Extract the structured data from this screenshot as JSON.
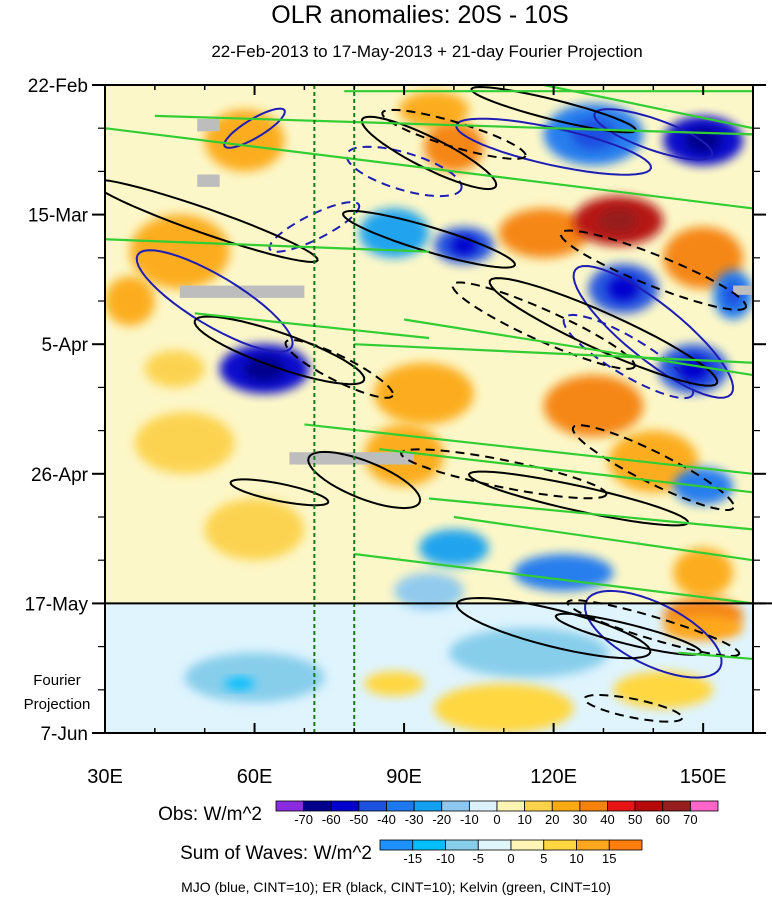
{
  "chart_data": {
    "type": "heatmap",
    "title": "OLR anomalies: 20S - 10S",
    "subtitle": "22-Feb-2013 to 17-May-2013 + 21-day Fourier Projection",
    "x_axis": {
      "label": "",
      "range": [
        30,
        160
      ],
      "ticks": [
        30,
        60,
        90,
        120,
        150
      ],
      "tick_labels": [
        "30E",
        "60E",
        "90E",
        "120E",
        "150E"
      ]
    },
    "y_axis": {
      "label": "",
      "range_days": [
        0,
        105
      ],
      "ticks_days": [
        0,
        21,
        42,
        63,
        84,
        105
      ],
      "tick_labels": [
        "22-Feb",
        "15-Mar",
        "5-Apr",
        "26-Apr",
        "17-May",
        "7-Jun"
      ],
      "inverted": true
    },
    "projection_start_day": 84,
    "projection_label": [
      "Fourier",
      "Projection"
    ],
    "dashed_reference_lines_lon": [
      72,
      80
    ],
    "obs_colorbar": {
      "label": "Obs: W/m^2",
      "levels": [
        -70,
        -60,
        -50,
        -40,
        -30,
        -20,
        -10,
        0,
        10,
        20,
        30,
        40,
        50,
        60,
        70
      ],
      "colors": [
        "#8a2be2",
        "#00008b",
        "#0000cd",
        "#1e50e0",
        "#1e78f0",
        "#14a0f0",
        "#8cc8f0",
        "#dcf2fc",
        "#fcf5b4",
        "#fcd24b",
        "#fcaa14",
        "#f5820a",
        "#e61414",
        "#b40a0a",
        "#961e1e",
        "#ff64c8"
      ]
    },
    "waves_colorbar": {
      "label": "Sum of Waves: W/m^2",
      "levels": [
        -15,
        -10,
        -5,
        0,
        5,
        10,
        15
      ],
      "colors": [
        "#1e90ff",
        "#00bfff",
        "#87ceeb",
        "#e0f6ff",
        "#fff5b4",
        "#ffd740",
        "#ffa81e",
        "#ff7f0e"
      ]
    },
    "footnote": "MJO (blue, CINT=10); ER (black, CINT=10); Kelvin (green, CINT=10)",
    "contour_series": [
      {
        "name": "MJO",
        "color": "#1e1eb4",
        "interval": 10
      },
      {
        "name": "ER",
        "color": "#000000",
        "interval": 10
      },
      {
        "name": "Kelvin",
        "color": "#32cd32",
        "interval": 10
      }
    ],
    "obs_features": [
      {
        "lon": 58,
        "day": 9,
        "rx": 8,
        "ry": 5,
        "value": 25
      },
      {
        "lon": 96,
        "day": 4,
        "rx": 7,
        "ry": 3,
        "value": 20
      },
      {
        "lon": 100,
        "day": 10,
        "rx": 6,
        "ry": 4,
        "value": 30
      },
      {
        "lon": 128,
        "day": 8,
        "rx": 10,
        "ry": 5,
        "value": -40
      },
      {
        "lon": 150,
        "day": 9,
        "rx": 8,
        "ry": 4,
        "value": -60
      },
      {
        "lon": 45,
        "day": 27,
        "rx": 10,
        "ry": 6,
        "value": 25
      },
      {
        "lon": 88,
        "day": 24,
        "rx": 7,
        "ry": 4,
        "value": -30
      },
      {
        "lon": 102,
        "day": 26,
        "rx": 6,
        "ry": 3,
        "value": -45
      },
      {
        "lon": 118,
        "day": 24,
        "rx": 9,
        "ry": 4,
        "value": 35
      },
      {
        "lon": 133,
        "day": 22,
        "rx": 9,
        "ry": 4,
        "value": 50
      },
      {
        "lon": 150,
        "day": 28,
        "rx": 8,
        "ry": 5,
        "value": 30
      },
      {
        "lon": 134,
        "day": 33,
        "rx": 7,
        "ry": 4,
        "value": -50
      },
      {
        "lon": 156,
        "day": 34,
        "rx": 4,
        "ry": 4,
        "value": -40
      },
      {
        "lon": 35,
        "day": 35,
        "rx": 5,
        "ry": 4,
        "value": 20
      },
      {
        "lon": 62,
        "day": 46,
        "rx": 9,
        "ry": 4,
        "value": -55
      },
      {
        "lon": 44,
        "day": 46,
        "rx": 6,
        "ry": 3,
        "value": 15
      },
      {
        "lon": 94,
        "day": 50,
        "rx": 10,
        "ry": 5,
        "value": 25
      },
      {
        "lon": 128,
        "day": 52,
        "rx": 10,
        "ry": 5,
        "value": 30
      },
      {
        "lon": 148,
        "day": 46,
        "rx": 7,
        "ry": 4,
        "value": -45
      },
      {
        "lon": 46,
        "day": 58,
        "rx": 10,
        "ry": 5,
        "value": 15
      },
      {
        "lon": 90,
        "day": 60,
        "rx": 8,
        "ry": 5,
        "value": 20
      },
      {
        "lon": 140,
        "day": 61,
        "rx": 9,
        "ry": 5,
        "value": 20
      },
      {
        "lon": 150,
        "day": 65,
        "rx": 6,
        "ry": 3,
        "value": -35
      },
      {
        "lon": 60,
        "day": 72,
        "rx": 10,
        "ry": 5,
        "value": 15
      },
      {
        "lon": 100,
        "day": 75,
        "rx": 7,
        "ry": 3,
        "value": -30
      },
      {
        "lon": 122,
        "day": 79,
        "rx": 10,
        "ry": 3,
        "value": -35
      },
      {
        "lon": 95,
        "day": 82,
        "rx": 7,
        "ry": 3,
        "value": -20
      },
      {
        "lon": 150,
        "day": 79,
        "rx": 6,
        "ry": 4,
        "value": 25
      },
      {
        "lon": 150,
        "day": 86,
        "rx": 8,
        "ry": 3,
        "value": 30
      }
    ],
    "wave_features": [
      {
        "lon": 60,
        "day": 96,
        "rx": 14,
        "ry": 4,
        "value": -10
      },
      {
        "lon": 57,
        "day": 97,
        "rx": 3,
        "ry": 1,
        "value": -15
      },
      {
        "lon": 115,
        "day": 92,
        "rx": 16,
        "ry": 4,
        "value": -10
      },
      {
        "lon": 110,
        "day": 101,
        "rx": 14,
        "ry": 4,
        "value": 8
      },
      {
        "lon": 88,
        "day": 97,
        "rx": 6,
        "ry": 2,
        "value": 6
      },
      {
        "lon": 142,
        "day": 98,
        "rx": 10,
        "ry": 3,
        "value": 6
      },
      {
        "lon": 150,
        "day": 88,
        "rx": 8,
        "ry": 2,
        "value": 12
      }
    ],
    "missing_data_boxes": [
      {
        "lon1": 48.5,
        "lon2": 53,
        "day1": 5.5,
        "day2": 7.5
      },
      {
        "lon1": 48.5,
        "lon2": 53,
        "day1": 14.5,
        "day2": 16.5
      },
      {
        "lon1": 45,
        "lon2": 70,
        "day1": 32.5,
        "day2": 34.5
      },
      {
        "lon1": 67,
        "lon2": 80,
        "day1": 59.5,
        "day2": 61.5
      },
      {
        "lon1": 80,
        "lon2": 92,
        "day1": 59.5,
        "day2": 61.5
      },
      {
        "lon1": 156,
        "lon2": 160,
        "day1": 32.5,
        "day2": 34
      }
    ],
    "mjo_contours": [
      {
        "lon": 60,
        "day": 7,
        "len": 14,
        "half_width": 1.5,
        "slope": -0.6,
        "negative": false
      },
      {
        "lon": 90,
        "day": 14,
        "len": 24,
        "half_width": 3.0,
        "slope": 0.3,
        "negative": true
      },
      {
        "lon": 120,
        "day": 10,
        "len": 40,
        "half_width": 3.0,
        "slope": 0.22,
        "negative": false
      },
      {
        "lon": 140,
        "day": 8,
        "len": 25,
        "half_width": 2.5,
        "slope": 0.35,
        "negative": false
      },
      {
        "lon": 52,
        "day": 35,
        "len": 36,
        "half_width": 4.0,
        "slope": 0.6,
        "negative": false
      },
      {
        "lon": 72,
        "day": 23,
        "len": 20,
        "half_width": 2.0,
        "slope": -0.5,
        "negative": true
      },
      {
        "lon": 140,
        "day": 40,
        "len": 40,
        "half_width": 4.5,
        "slope": 0.8,
        "negative": false
      },
      {
        "lon": 135,
        "day": 44,
        "len": 30,
        "half_width": 3.0,
        "slope": 0.6,
        "negative": true
      },
      {
        "lon": 140,
        "day": 89,
        "len": 30,
        "half_width": 5.0,
        "slope": 0.5,
        "negative": false
      }
    ],
    "er_contours": [
      {
        "lon": 50,
        "day": 22,
        "len": 48,
        "half_width": 2.0,
        "slope": 0.35,
        "negative": false
      },
      {
        "lon": 65,
        "day": 43,
        "len": 36,
        "half_width": 2.8,
        "slope": 0.35,
        "negative": false
      },
      {
        "lon": 95,
        "day": 11,
        "len": 30,
        "half_width": 2.5,
        "slope": 0.5,
        "negative": false
      },
      {
        "lon": 95,
        "day": 25,
        "len": 36,
        "half_width": 2.0,
        "slope": 0.3,
        "negative": false
      },
      {
        "lon": 100,
        "day": 8,
        "len": 30,
        "half_width": 2.0,
        "slope": 0.3,
        "negative": true
      },
      {
        "lon": 120,
        "day": 4,
        "len": 34,
        "half_width": 1.6,
        "slope": 0.25,
        "negative": false
      },
      {
        "lon": 130,
        "day": 40,
        "len": 50,
        "half_width": 3.0,
        "slope": 0.45,
        "negative": false
      },
      {
        "lon": 118,
        "day": 39,
        "len": 40,
        "half_width": 2.5,
        "slope": 0.45,
        "negative": true
      },
      {
        "lon": 140,
        "day": 30,
        "len": 40,
        "half_width": 2.5,
        "slope": 0.4,
        "negative": true
      },
      {
        "lon": 110,
        "day": 63,
        "len": 42,
        "half_width": 2.2,
        "slope": 0.2,
        "negative": true
      },
      {
        "lon": 125,
        "day": 67,
        "len": 45,
        "half_width": 2.0,
        "slope": 0.22,
        "negative": false
      },
      {
        "lon": 77,
        "day": 46,
        "len": 24,
        "half_width": 2.0,
        "slope": 0.5,
        "negative": true
      },
      {
        "lon": 82,
        "day": 64,
        "len": 24,
        "half_width": 3.0,
        "slope": 0.4,
        "negative": false
      },
      {
        "lon": 140,
        "day": 62,
        "len": 36,
        "half_width": 2.5,
        "slope": 0.5,
        "negative": true
      },
      {
        "lon": 120,
        "day": 88,
        "len": 40,
        "half_width": 3.0,
        "slope": 0.25,
        "negative": false
      },
      {
        "lon": 135,
        "day": 89,
        "len": 30,
        "half_width": 1.6,
        "slope": 0.25,
        "negative": false
      },
      {
        "lon": 140,
        "day": 88,
        "len": 36,
        "half_width": 1.8,
        "slope": 0.3,
        "negative": true
      },
      {
        "lon": 136,
        "day": 101,
        "len": 20,
        "half_width": 1.5,
        "slope": 0.2,
        "negative": true
      },
      {
        "lon": 65,
        "day": 66,
        "len": 20,
        "half_width": 1.4,
        "slope": 0.2,
        "negative": false
      }
    ],
    "kelvin_lines": [
      {
        "lon1": 30,
        "day1": 7,
        "lon2": 160,
        "day2": 20
      },
      {
        "lon1": 40,
        "day1": 5,
        "lon2": 160,
        "day2": 8
      },
      {
        "lon1": 78,
        "day1": 1,
        "lon2": 160,
        "day2": 1
      },
      {
        "lon1": 118,
        "day1": 0,
        "lon2": 160,
        "day2": 7
      },
      {
        "lon1": 30,
        "day1": 25,
        "lon2": 95,
        "day2": 27
      },
      {
        "lon1": 48,
        "day1": 37,
        "lon2": 95,
        "day2": 41
      },
      {
        "lon1": 80,
        "day1": 42,
        "lon2": 160,
        "day2": 45
      },
      {
        "lon1": 90,
        "day1": 38,
        "lon2": 160,
        "day2": 47
      },
      {
        "lon1": 70,
        "day1": 55,
        "lon2": 160,
        "day2": 63
      },
      {
        "lon1": 85,
        "day1": 59,
        "lon2": 160,
        "day2": 66
      },
      {
        "lon1": 95,
        "day1": 67,
        "lon2": 160,
        "day2": 72
      },
      {
        "lon1": 80,
        "day1": 76,
        "lon2": 160,
        "day2": 84
      },
      {
        "lon1": 100,
        "day1": 70,
        "lon2": 160,
        "day2": 77
      },
      {
        "lon1": 145,
        "day1": 92,
        "lon2": 160,
        "day2": 93
      }
    ]
  }
}
